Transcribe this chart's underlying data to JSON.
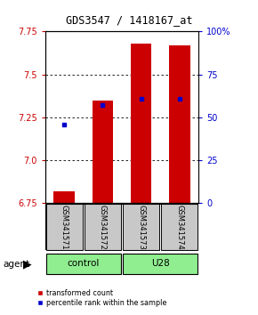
{
  "title": "GDS3547 / 1418167_at",
  "samples": [
    "GSM341571",
    "GSM341572",
    "GSM341573",
    "GSM341574"
  ],
  "transformed_counts": [
    6.82,
    7.35,
    7.68,
    7.67
  ],
  "percentile_ranks": [
    7.21,
    7.32,
    7.36,
    7.36
  ],
  "ylim_left": [
    6.75,
    7.75
  ],
  "ylim_right": [
    0,
    100
  ],
  "yticks_left": [
    6.75,
    7.0,
    7.25,
    7.5,
    7.75
  ],
  "yticks_right": [
    0,
    25,
    50,
    75,
    100
  ],
  "bar_color": "#CC0000",
  "blue_marker_color": "#0000CC",
  "left_axis_color": "#CC0000",
  "right_axis_color": "#0000CC",
  "grid_dotted_at": [
    7.0,
    7.25,
    7.5
  ],
  "bar_width": 0.55,
  "bar_bottom": 6.75,
  "sample_box_color": "#C8C8C8",
  "group_box_color": "#90EE90",
  "legend_items": [
    "transformed count",
    "percentile rank within the sample"
  ]
}
